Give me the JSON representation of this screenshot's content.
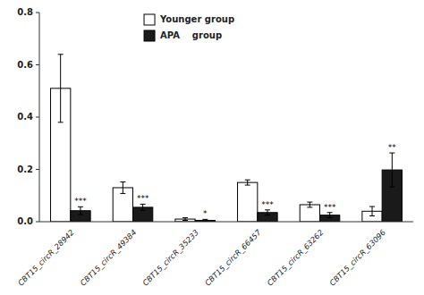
{
  "chart_data": {
    "type": "bar",
    "categories": [
      "CBT15_circR_28942",
      "CBT15_circR_49384",
      "CBT15_circR_35233",
      "CBT15_circR_66457",
      "CBT15_circR_63262",
      "CBT15_circR_63096"
    ],
    "series": [
      {
        "name": "Younger group",
        "color": "#ffffff",
        "values": [
          0.51,
          0.13,
          0.01,
          0.15,
          0.065,
          0.04
        ],
        "errors": [
          0.13,
          0.022,
          0.005,
          0.01,
          0.01,
          0.018
        ]
      },
      {
        "name": "APA    group",
        "color": "#1a1a1a",
        "values": [
          0.042,
          0.055,
          0.005,
          0.035,
          0.025,
          0.198
        ],
        "errors": [
          0.015,
          0.012,
          0.004,
          0.01,
          0.01,
          0.065
        ],
        "significance": [
          "***",
          "***",
          "*",
          "***",
          "***",
          "**"
        ]
      }
    ],
    "ylim": [
      0,
      0.8
    ],
    "yticks": [
      {
        "value": 0,
        "label": "0.0"
      },
      0.2,
      0.4,
      0.6,
      0.8
    ],
    "legend": "upper left",
    "grid": false
  }
}
